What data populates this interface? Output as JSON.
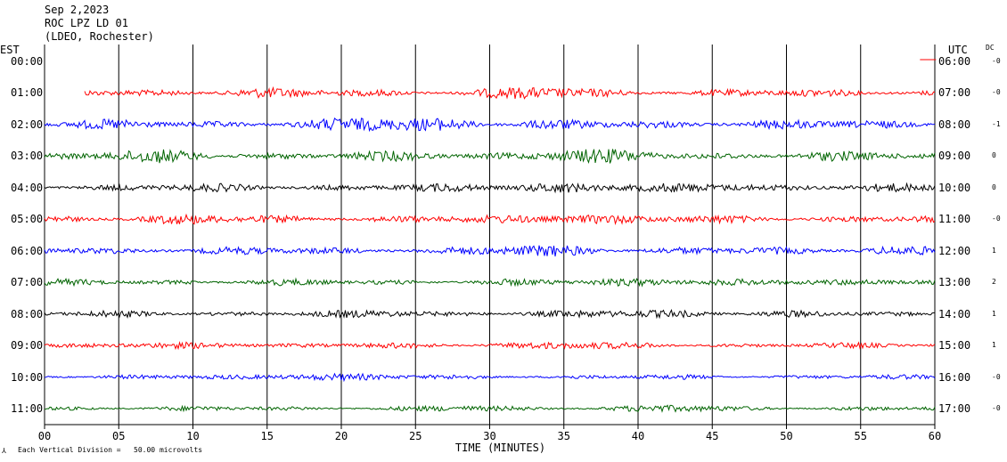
{
  "header": {
    "date": "Sep 2,2023",
    "station": "ROC LPZ LD 01",
    "network": "(LDEO, Rochester)"
  },
  "left_axis_title": "EST",
  "right_axis_title": "UTC",
  "dc_title": "DC",
  "footer_note": "Each Vertical Division =   50.00 microvolts",
  "chart_data": {
    "type": "line",
    "xlabel": "TIME (MINUTES)",
    "xlim": [
      0,
      60
    ],
    "x_ticks": [
      "00",
      "05",
      "10",
      "15",
      "20",
      "25",
      "30",
      "35",
      "40",
      "45",
      "50",
      "55",
      "60"
    ],
    "rows": [
      {
        "est": "00:00",
        "utc": "06:00",
        "dc": "-0",
        "color": "#ff0000",
        "start_min": 59,
        "amplitude": 0
      },
      {
        "est": "01:00",
        "utc": "07:00",
        "dc": "-0",
        "color": "#ff0000",
        "start_min": 2.7,
        "amplitude": 5
      },
      {
        "est": "02:00",
        "utc": "08:00",
        "dc": "-1",
        "color": "#0000ff",
        "start_min": 0,
        "amplitude": 6
      },
      {
        "est": "03:00",
        "utc": "09:00",
        "dc": "0",
        "color": "#006400",
        "start_min": 0,
        "amplitude": 6
      },
      {
        "est": "04:00",
        "utc": "10:00",
        "dc": "0",
        "color": "#000000",
        "start_min": 0,
        "amplitude": 5
      },
      {
        "est": "05:00",
        "utc": "11:00",
        "dc": "-0",
        "color": "#ff0000",
        "start_min": 0,
        "amplitude": 5
      },
      {
        "est": "06:00",
        "utc": "12:00",
        "dc": "1",
        "color": "#0000ff",
        "start_min": 0,
        "amplitude": 5
      },
      {
        "est": "07:00",
        "utc": "13:00",
        "dc": "2",
        "color": "#006400",
        "start_min": 0,
        "amplitude": 4
      },
      {
        "est": "08:00",
        "utc": "14:00",
        "dc": "1",
        "color": "#000000",
        "start_min": 0,
        "amplitude": 4
      },
      {
        "est": "09:00",
        "utc": "15:00",
        "dc": "1",
        "color": "#ff0000",
        "start_min": 0,
        "amplitude": 3.5
      },
      {
        "est": "10:00",
        "utc": "16:00",
        "dc": "-0",
        "color": "#0000ff",
        "start_min": 0,
        "amplitude": 3
      },
      {
        "est": "11:00",
        "utc": "17:00",
        "dc": "-0",
        "color": "#006400",
        "start_min": 0,
        "amplitude": 3
      }
    ]
  }
}
